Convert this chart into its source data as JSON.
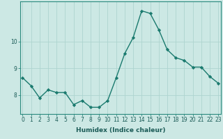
{
  "x": [
    0,
    1,
    2,
    3,
    4,
    5,
    6,
    7,
    8,
    9,
    10,
    11,
    12,
    13,
    14,
    15,
    16,
    17,
    18,
    19,
    20,
    21,
    22,
    23
  ],
  "y": [
    8.65,
    8.35,
    7.9,
    8.2,
    8.1,
    8.1,
    7.65,
    7.8,
    7.55,
    7.55,
    7.8,
    8.65,
    9.55,
    10.15,
    11.15,
    11.05,
    10.45,
    9.7,
    9.4,
    9.3,
    9.05,
    9.05,
    8.7,
    8.45
  ],
  "line_color": "#1a7a6e",
  "marker": "D",
  "markersize": 2.2,
  "linewidth": 1.0,
  "bg_color": "#cce8e4",
  "grid_color": "#aed4cf",
  "xlabel": "Humidex (Indice chaleur)",
  "xlabel_fontsize": 6.5,
  "tick_fontsize": 5.5,
  "yticks": [
    8,
    9,
    10
  ],
  "xticks": [
    0,
    1,
    2,
    3,
    4,
    5,
    6,
    7,
    8,
    9,
    10,
    11,
    12,
    13,
    14,
    15,
    16,
    17,
    18,
    19,
    20,
    21,
    22,
    23
  ],
  "xlim": [
    -0.3,
    23.3
  ],
  "ylim": [
    7.3,
    11.5
  ]
}
